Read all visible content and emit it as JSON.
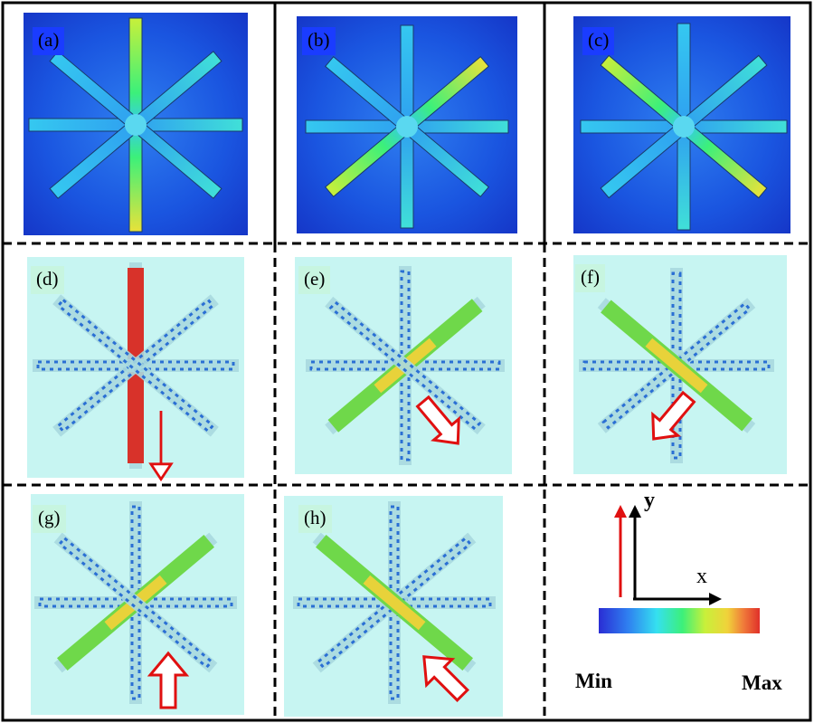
{
  "panels": [
    {
      "id": "a",
      "label": "(a)",
      "kind": "field",
      "hot_arm": "vertical"
    },
    {
      "id": "b",
      "label": "(b)",
      "kind": "field",
      "hot_arm": "diag_main"
    },
    {
      "id": "c",
      "label": "(c)",
      "kind": "field",
      "hot_arm": "diag_anti"
    },
    {
      "id": "d",
      "label": "(d)",
      "kind": "current",
      "hot_arm": "vertical",
      "arrow_direction": "down"
    },
    {
      "id": "e",
      "label": "(e)",
      "kind": "current",
      "hot_arm": "diag_main",
      "arrow_direction": "down-right"
    },
    {
      "id": "f",
      "label": "(f)",
      "kind": "current",
      "hot_arm": "diag_anti",
      "arrow_direction": "down-left"
    },
    {
      "id": "g",
      "label": "(g)",
      "kind": "current",
      "hot_arm": "diag_main",
      "arrow_direction": "up"
    },
    {
      "id": "h",
      "label": "(h)",
      "kind": "current",
      "hot_arm": "diag_anti",
      "arrow_direction": "up-left"
    }
  ],
  "legend": {
    "axis_x": "x",
    "axis_y": "y",
    "min_label": "Min",
    "max_label": "Max",
    "colormap": [
      "#2a2dd4",
      "#2f7ff0",
      "#35e0f0",
      "#3cf07a",
      "#c8f03a",
      "#f0d23a",
      "#f07a3a",
      "#e0302a"
    ],
    "axis_color": "#000000",
    "arrow_color": "#e01010"
  },
  "colors": {
    "field_background": "#1a55e0",
    "current_background": "#c7f5f2",
    "grid_line": "#000000"
  }
}
